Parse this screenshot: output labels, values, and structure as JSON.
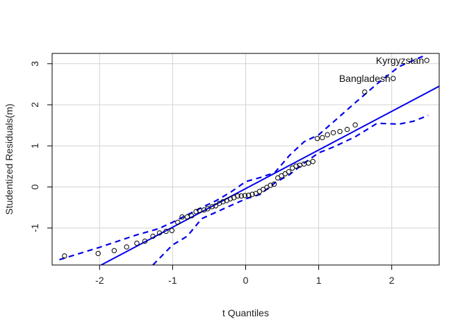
{
  "chart_data": {
    "type": "scatter",
    "title": "",
    "xlabel": "t Quantiles",
    "ylabel": "Studentized Residuals(m)",
    "xlim": [
      -2.65,
      2.65
    ],
    "ylim": [
      -1.9,
      3.25
    ],
    "x_ticks": [
      -2,
      -1,
      0,
      1,
      2
    ],
    "x_tick_labels": [
      "-2",
      "-1",
      "0",
      "1",
      "2"
    ],
    "y_ticks": [
      -1,
      0,
      1,
      2,
      3
    ],
    "y_tick_labels": [
      "-1",
      "0",
      "1",
      "2",
      "3"
    ],
    "grid": true,
    "colors": {
      "points": "#000000",
      "reference_line": "#0000ee",
      "envelope": "#0000ee",
      "grid": "#d3d3d3"
    },
    "points": [
      {
        "x": -2.48,
        "y": -1.68
      },
      {
        "x": -2.02,
        "y": -1.62
      },
      {
        "x": -1.8,
        "y": -1.55
      },
      {
        "x": -1.63,
        "y": -1.46
      },
      {
        "x": -1.49,
        "y": -1.37
      },
      {
        "x": -1.38,
        "y": -1.32
      },
      {
        "x": -1.27,
        "y": -1.2
      },
      {
        "x": -1.18,
        "y": -1.12
      },
      {
        "x": -1.09,
        "y": -1.08
      },
      {
        "x": -1.01,
        "y": -1.06
      },
      {
        "x": -0.93,
        "y": -0.86
      },
      {
        "x": -0.87,
        "y": -0.73
      },
      {
        "x": -0.8,
        "y": -0.73
      },
      {
        "x": -0.74,
        "y": -0.7
      },
      {
        "x": -0.68,
        "y": -0.6
      },
      {
        "x": -0.63,
        "y": -0.57
      },
      {
        "x": -0.57,
        "y": -0.56
      },
      {
        "x": -0.52,
        "y": -0.53
      },
      {
        "x": -0.46,
        "y": -0.48
      },
      {
        "x": -0.41,
        "y": -0.46
      },
      {
        "x": -0.36,
        "y": -0.4
      },
      {
        "x": -0.31,
        "y": -0.36
      },
      {
        "x": -0.26,
        "y": -0.33
      },
      {
        "x": -0.21,
        "y": -0.29
      },
      {
        "x": -0.16,
        "y": -0.26
      },
      {
        "x": -0.11,
        "y": -0.22
      },
      {
        "x": -0.06,
        "y": -0.22
      },
      {
        "x": -0.01,
        "y": -0.21
      },
      {
        "x": 0.04,
        "y": -0.2
      },
      {
        "x": 0.09,
        "y": -0.18
      },
      {
        "x": 0.14,
        "y": -0.16
      },
      {
        "x": 0.19,
        "y": -0.11
      },
      {
        "x": 0.24,
        "y": -0.06
      },
      {
        "x": 0.29,
        "y": -0.01
      },
      {
        "x": 0.34,
        "y": 0.04
      },
      {
        "x": 0.39,
        "y": 0.07
      },
      {
        "x": 0.44,
        "y": 0.22
      },
      {
        "x": 0.49,
        "y": 0.27
      },
      {
        "x": 0.54,
        "y": 0.32
      },
      {
        "x": 0.59,
        "y": 0.37
      },
      {
        "x": 0.64,
        "y": 0.46
      },
      {
        "x": 0.69,
        "y": 0.51
      },
      {
        "x": 0.74,
        "y": 0.53
      },
      {
        "x": 0.8,
        "y": 0.56
      },
      {
        "x": 0.86,
        "y": 0.58
      },
      {
        "x": 0.92,
        "y": 0.62
      },
      {
        "x": 0.98,
        "y": 1.18
      },
      {
        "x": 1.05,
        "y": 1.2
      },
      {
        "x": 1.12,
        "y": 1.27
      },
      {
        "x": 1.2,
        "y": 1.32
      },
      {
        "x": 1.29,
        "y": 1.35
      },
      {
        "x": 1.39,
        "y": 1.4
      },
      {
        "x": 1.5,
        "y": 1.51
      },
      {
        "x": 1.63,
        "y": 2.31
      },
      {
        "x": 2.02,
        "y": 2.64
      },
      {
        "x": 2.48,
        "y": 3.08
      }
    ],
    "annotations": [
      {
        "text": "Kyrgyzstan",
        "x": 2.48,
        "y": 3.08
      },
      {
        "text": "Bangladesh",
        "x": 2.02,
        "y": 2.64
      }
    ],
    "reference_line": {
      "intercept": -0.04,
      "slope": 0.94
    },
    "envelope_upper": [
      [
        -2.55,
        -1.77
      ],
      [
        -2.0,
        -1.47
      ],
      [
        -1.5,
        -1.17
      ],
      [
        -1.2,
        -1.02
      ],
      [
        -1.0,
        -0.86
      ],
      [
        -0.6,
        -0.5
      ],
      [
        -0.4,
        -0.33
      ],
      [
        -0.2,
        -0.12
      ],
      [
        0.0,
        0.13
      ],
      [
        0.2,
        0.23
      ],
      [
        0.4,
        0.35
      ],
      [
        0.6,
        0.77
      ],
      [
        0.8,
        1.1
      ],
      [
        1.0,
        1.27
      ],
      [
        1.2,
        1.58
      ],
      [
        1.5,
        2.05
      ],
      [
        1.8,
        2.51
      ],
      [
        2.1,
        2.93
      ],
      [
        2.45,
        3.2
      ]
    ],
    "envelope_lower": [
      [
        -1.27,
        -1.9
      ],
      [
        -1.0,
        -1.41
      ],
      [
        -0.8,
        -1.2
      ],
      [
        -0.6,
        -0.77
      ],
      [
        -0.4,
        -0.61
      ],
      [
        -0.2,
        -0.45
      ],
      [
        0.0,
        -0.29
      ],
      [
        0.2,
        -0.18
      ],
      [
        0.4,
        0.1
      ],
      [
        0.6,
        0.3
      ],
      [
        0.8,
        0.58
      ],
      [
        1.0,
        0.83
      ],
      [
        1.2,
        0.97
      ],
      [
        1.5,
        1.22
      ],
      [
        1.8,
        1.55
      ],
      [
        2.1,
        1.53
      ],
      [
        2.3,
        1.6
      ],
      [
        2.5,
        1.74
      ]
    ]
  }
}
